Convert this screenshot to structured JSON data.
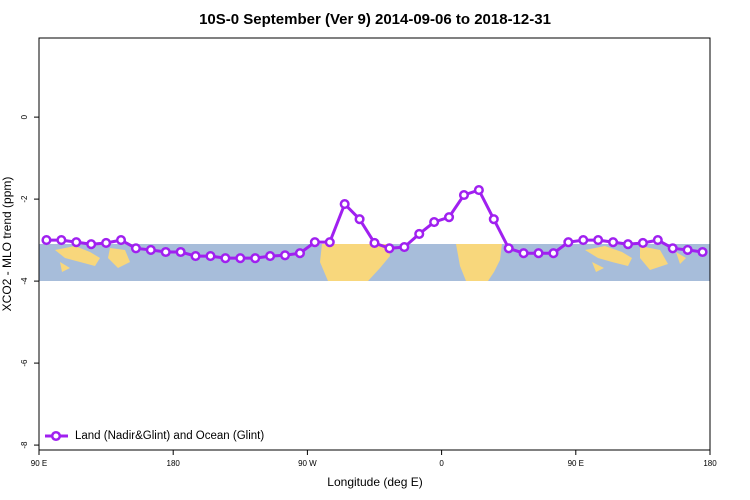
{
  "chart_data": {
    "type": "line",
    "title": "10S-0 September (Ver 9)   2014-09-06 to 2018-12-31",
    "x_label": "Longitude (deg E)",
    "y_label": "XCO2 - MLO trend (ppm)",
    "xlim": [
      90,
      540
    ],
    "xticks": [
      {
        "value": 90,
        "label": "90 E"
      },
      {
        "value": 180,
        "label": "180"
      },
      {
        "value": 270,
        "label": "90 W"
      },
      {
        "value": 360,
        "label": "0"
      },
      {
        "value": 450,
        "label": "90 E"
      },
      {
        "value": 540,
        "label": "180"
      }
    ],
    "ylim": [
      -8.12,
      1.93
    ],
    "yticks": [
      0,
      -2,
      -4,
      -6,
      -8
    ],
    "legend": "bottom-left",
    "x": [
      95,
      105,
      115,
      125,
      135,
      145,
      155,
      165,
      175,
      185,
      195,
      205,
      215,
      225,
      235,
      245,
      255,
      265,
      275,
      285,
      295,
      305,
      315,
      325,
      335,
      345,
      355,
      365,
      375,
      385,
      395,
      405,
      415,
      425,
      435,
      445,
      455,
      465,
      475,
      485,
      495,
      505,
      515,
      525,
      535
    ],
    "series": [
      {
        "name": "Land (Nadir&Glint) and Ocean (Glint)",
        "color": "#a020f0",
        "values": [
          -3.0,
          -3.0,
          -3.05,
          -3.1,
          -3.07,
          -3.0,
          -3.2,
          -3.24,
          -3.29,
          -3.29,
          -3.39,
          -3.39,
          -3.44,
          -3.44,
          -3.44,
          -3.39,
          -3.37,
          -3.32,
          -3.05,
          -3.05,
          -2.12,
          -2.49,
          -3.07,
          -3.2,
          -3.17,
          -2.85,
          -2.56,
          -2.44,
          -1.9,
          -1.78,
          -2.49,
          -3.2,
          -3.32,
          -3.32,
          -3.32,
          -3.05,
          -3.0,
          -3.0,
          -3.05,
          -3.1,
          -3.07,
          -3.0,
          -3.2,
          -3.24,
          -3.29
        ]
      }
    ]
  }
}
